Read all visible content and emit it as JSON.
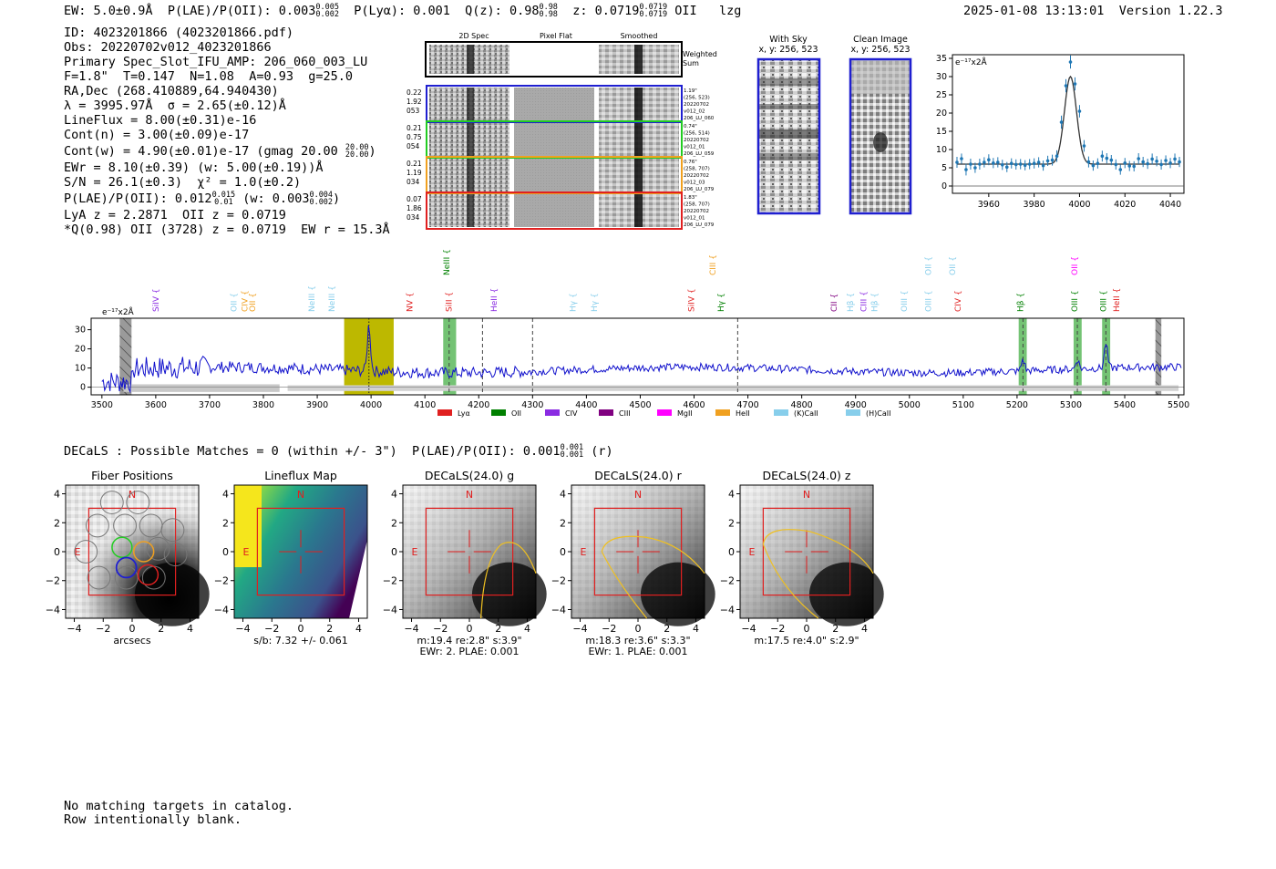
{
  "header": {
    "ew_label": "EW: 5.0±0.9Å",
    "plae_label": "P(LAE)/P(OII): 0.003",
    "plae_hi": "0.005",
    "plae_lo": "0.002",
    "plya_label": "P(Lyα): 0.001",
    "q_label": "Q(z): 0.98",
    "q_hi": "0.98",
    "q_lo": "0.98",
    "z_label": "z: 0.0719",
    "z_hi": "0.0719",
    "z_lo": "0.0719",
    "z_line": "OII",
    "tag": "lzg",
    "timestamp": "2025-01-08 13:13:01",
    "version": "Version 1.22.3"
  },
  "info": {
    "id": "ID: 4023201866 (4023201866.pdf)",
    "obs": "Obs: 20220702v012_4023201866",
    "slot": "Primary Spec_Slot_IFU_AMP: 206_060_003_LU",
    "fta": "F=1.8\"  T=0.147  N=1.08  A=0.93  g=25.0",
    "radec": "RA,Dec (268.410889,64.940430)",
    "lambda": "λ = 3995.97Å  σ = 2.65(±0.12)Å",
    "lineflux": "LineFlux = 8.00(±0.31)e-16",
    "contn": "Cont(n) = 3.00(±0.09)e-17",
    "contw": "Cont(w) = 4.90(±0.01)e-17 (gmag 20.00",
    "contw_hi": "20.00",
    "contw_lo": "20.00",
    "contw_end": ")",
    "ewr": "EWr = 8.10(±0.39) (w: 5.00(±0.19))Å",
    "sn": "S/N = 26.1(±0.3)  χ² = 1.0(±0.2)",
    "plae2": "P(LAE)/P(OII): 0.012",
    "plae2_hi": "0.015",
    "plae2_lo": "0.01",
    "plae2_w": "(w: 0.003",
    "plae2_w_hi": "0.004",
    "plae2_w_lo": "0.002",
    "plae2_end": ")",
    "lya": "LyA z = 2.2871  OII z = 0.0719",
    "qline": "*Q(0.98) OII (3728) z = 0.0719  EW r = 15.3Å"
  },
  "cutouts": {
    "col_labels": [
      "2D Spec",
      "Pixel Flat",
      "Smoothed"
    ],
    "weighted": [
      "Weighted",
      "Sum"
    ],
    "rows": [
      {
        "left": [
          "0.22",
          "1.92",
          "053"
        ],
        "right": [
          "1.19\"",
          "(256, 523)",
          "20220702",
          "v012_02",
          "206_LU_060"
        ],
        "color": "#1f1fd0"
      },
      {
        "left": [
          "0.21",
          "0.75",
          "054"
        ],
        "right": [
          "0.74\"",
          "(256, 514)",
          "20220702",
          "v012_01",
          "206_LU_059"
        ],
        "color": "#22cc22"
      },
      {
        "left": [
          "0.21",
          "1.19",
          "034"
        ],
        "right": [
          "0.76\"",
          "(258, 707)",
          "20220702",
          "v012_03",
          "206_LU_079"
        ],
        "color": "#f0a020"
      },
      {
        "left": [
          "0.07",
          "1.86",
          "034"
        ],
        "right": [
          "1.83\"",
          "(258, 707)",
          "20220702",
          "v012_01",
          "206_LU_079"
        ],
        "color": "#e02020"
      }
    ],
    "with_sky": [
      "With Sky",
      "x, y: 256, 523"
    ],
    "clean_image": [
      "Clean Image",
      "x, y: 256, 523"
    ]
  },
  "chart_data": [
    {
      "type": "scatter",
      "name": "line-fit",
      "ylabel": "e⁻¹⁷x2Å",
      "xlim": [
        3944,
        4046
      ],
      "ylim": [
        -2,
        36
      ],
      "x_ticks": [
        3960,
        3980,
        4000,
        4020,
        4040
      ],
      "y_ticks": [
        0,
        5,
        10,
        15,
        20,
        25,
        30,
        35
      ],
      "points": [
        [
          3946,
          6.5
        ],
        [
          3948,
          7.5
        ],
        [
          3950,
          4.5
        ],
        [
          3952,
          6
        ],
        [
          3954,
          5
        ],
        [
          3956,
          6
        ],
        [
          3958,
          6.5
        ],
        [
          3960,
          7.2
        ],
        [
          3962,
          6.3
        ],
        [
          3964,
          6.5
        ],
        [
          3966,
          5.8
        ],
        [
          3968,
          5.2
        ],
        [
          3970,
          6.2
        ],
        [
          3972,
          5.9
        ],
        [
          3974,
          6
        ],
        [
          3976,
          5.7
        ],
        [
          3978,
          6
        ],
        [
          3980,
          6.2
        ],
        [
          3982,
          6.5
        ],
        [
          3984,
          5.6
        ],
        [
          3986,
          6.9
        ],
        [
          3988,
          7.1
        ],
        [
          3990,
          8.2
        ],
        [
          3992,
          17.5
        ],
        [
          3994,
          27.5
        ],
        [
          3996,
          34
        ],
        [
          3998,
          28
        ],
        [
          4000,
          20.5
        ],
        [
          4002,
          11
        ],
        [
          4004,
          6.6
        ],
        [
          4006,
          5.6
        ],
        [
          4008,
          6.2
        ],
        [
          4010,
          8.2
        ],
        [
          4012,
          7.6
        ],
        [
          4014,
          7.1
        ],
        [
          4016,
          5.9
        ],
        [
          4018,
          4.5
        ],
        [
          4020,
          6.3
        ],
        [
          4022,
          5.5
        ],
        [
          4024,
          5.4
        ],
        [
          4026,
          7.5
        ],
        [
          4028,
          6.6
        ],
        [
          4030,
          6.1
        ],
        [
          4032,
          7.4
        ],
        [
          4034,
          6.8
        ],
        [
          4036,
          5.9
        ],
        [
          4038,
          7
        ],
        [
          4040,
          6.3
        ],
        [
          4042,
          7.4
        ],
        [
          4044,
          6.6
        ]
      ],
      "errors": [
        1.5,
        1.4,
        1.6,
        1.5,
        1.4,
        1.5,
        1.4,
        1.5,
        1.4,
        1.4,
        1.4,
        1.4,
        1.4,
        1.4,
        1.4,
        1.4,
        1.4,
        1.4,
        1.4,
        1.4,
        1.4,
        1.5,
        1.6,
        1.8,
        1.8,
        1.8,
        1.8,
        1.7,
        1.6,
        1.5,
        1.4,
        1.4,
        1.5,
        1.4,
        1.4,
        1.4,
        1.4,
        1.4,
        1.4,
        1.4,
        1.5,
        1.4,
        1.4,
        1.5,
        1.4,
        1.4,
        1.4,
        1.4,
        1.5,
        1.4
      ],
      "fit": {
        "continuum": 6,
        "amplitude": 24,
        "center": 3996,
        "sigma": 2.65
      }
    },
    {
      "type": "line",
      "name": "full-spectrum",
      "ylabel": "e⁻¹⁷x2Å",
      "xlim": [
        3480,
        5510
      ],
      "ylim": [
        -4,
        36
      ],
      "x_ticks": [
        3500,
        3600,
        3700,
        3800,
        3900,
        4000,
        4100,
        4200,
        4300,
        4400,
        4500,
        4600,
        4700,
        4800,
        4900,
        5000,
        5100,
        5200,
        5300,
        5400,
        5500
      ],
      "y_ticks": [
        0,
        10,
        20,
        30
      ],
      "emission_peaks": [
        {
          "x": 3996,
          "y": 33
        },
        {
          "x": 5211,
          "y": 15
        },
        {
          "x": 5312,
          "y": 14
        },
        {
          "x": 5365,
          "y": 22
        }
      ],
      "baseline": 9,
      "highlight_yellow": [
        3950,
        4042
      ],
      "highlight_green": [
        [
          4134,
          4158
        ],
        [
          5203,
          5218
        ],
        [
          5305,
          5320
        ],
        [
          5358,
          5373
        ]
      ],
      "hatched_gray": [
        [
          3533,
          3555
        ],
        [
          5457,
          5468
        ]
      ],
      "dashed_lines": [
        4145,
        4207,
        4300,
        4681,
        5211,
        5312,
        5365
      ],
      "dotted_line": 3996,
      "line_labels": [
        {
          "x": 3605,
          "label": "SiIV",
          "color": "#8a2be2",
          "row": 2
        },
        {
          "x": 3750,
          "label": "OII",
          "color": "#87ceeb",
          "row": 2
        },
        {
          "x": 3770,
          "label": "CIV",
          "color": "#f0a020",
          "row": 2
        },
        {
          "x": 3785,
          "label": "OII",
          "color": "#f0a020",
          "row": 2
        },
        {
          "x": 3895,
          "label": "NeIII",
          "color": "#87ceeb",
          "row": 2
        },
        {
          "x": 3932,
          "label": "NeIII",
          "color": "#87ceeb",
          "row": 2
        },
        {
          "x": 4077,
          "label": "NV",
          "color": "#e02020",
          "row": 2
        },
        {
          "x": 4145,
          "label": "NeIII",
          "color": "#008000",
          "row": 0
        },
        {
          "x": 4150,
          "label": "SiII",
          "color": "#e02020",
          "row": 2
        },
        {
          "x": 4233,
          "label": "HeII",
          "color": "#8a2be2",
          "row": 2
        },
        {
          "x": 4380,
          "label": "Hγ",
          "color": "#87ceeb",
          "row": 2
        },
        {
          "x": 4420,
          "label": "Hγ",
          "color": "#87ceeb",
          "row": 2
        },
        {
          "x": 4600,
          "label": "SiIV",
          "color": "#e02020",
          "row": 2
        },
        {
          "x": 4640,
          "label": "CIII",
          "color": "#f0a020",
          "row": 0
        },
        {
          "x": 4655,
          "label": "Hγ",
          "color": "#008000",
          "row": 2
        },
        {
          "x": 4865,
          "label": "CII",
          "color": "#800080",
          "row": 2
        },
        {
          "x": 4895,
          "label": "Hβ",
          "color": "#87ceeb",
          "row": 2
        },
        {
          "x": 4920,
          "label": "CIII",
          "color": "#8a2be2",
          "row": 2
        },
        {
          "x": 4940,
          "label": "Hβ",
          "color": "#87ceeb",
          "row": 2
        },
        {
          "x": 4995,
          "label": "OIII",
          "color": "#87ceeb",
          "row": 2
        },
        {
          "x": 5040,
          "label": "OII",
          "color": "#87ceeb",
          "row": 0
        },
        {
          "x": 5040,
          "label": "OIII",
          "color": "#87ceeb",
          "row": 2
        },
        {
          "x": 5085,
          "label": "OII",
          "color": "#87ceeb",
          "row": 0
        },
        {
          "x": 5095,
          "label": "CIV",
          "color": "#e02020",
          "row": 2
        },
        {
          "x": 5211,
          "label": "Hβ",
          "color": "#008000",
          "row": 2
        },
        {
          "x": 5312,
          "label": "OII",
          "color": "#ff00ff",
          "row": 0
        },
        {
          "x": 5312,
          "label": "OIII",
          "color": "#008000",
          "row": 2
        },
        {
          "x": 5365,
          "label": "OIII",
          "color": "#008000",
          "row": 2
        },
        {
          "x": 5390,
          "label": "HeII",
          "color": "#e02020",
          "row": 2
        }
      ],
      "legend": [
        {
          "label": "Lyα",
          "color": "#e02020"
        },
        {
          "label": "OII",
          "color": "#008000"
        },
        {
          "label": "CIV",
          "color": "#8a2be2"
        },
        {
          "label": "CIII",
          "color": "#800080"
        },
        {
          "label": "MgII",
          "color": "#ff00ff"
        },
        {
          "label": "HeII",
          "color": "#f0a020"
        },
        {
          "label": "(K)CaII",
          "color": "#87ceeb"
        },
        {
          "label": "(H)CaII",
          "color": "#87ceeb"
        }
      ]
    }
  ],
  "decals": {
    "heading": "DECaLS : Possible Matches = 0 (within +/- 3\")  P(LAE)/P(OII): 0.001",
    "heading_hi": "0.001",
    "heading_lo": "0.001",
    "heading_end": "(r)",
    "axis_ticks": [
      "−4",
      "−2",
      "0",
      "2",
      "4"
    ],
    "panels": [
      {
        "title": "Fiber Positions",
        "caption": [
          "arcsecs"
        ]
      },
      {
        "title": "Lineflux Map",
        "caption": [
          "s/b: 7.32 +/- 0.061"
        ]
      },
      {
        "title": "DECaLS(24.0) g",
        "caption": [
          "m:19.4  re:2.8\"  s:3.9\"",
          "EWr: 2. PLAE: 0.001"
        ]
      },
      {
        "title": "DECaLS(24.0) r",
        "caption": [
          "m:18.3  re:3.6\"  s:3.3\"",
          "EWr: 1. PLAE: 0.001"
        ]
      },
      {
        "title": "DECaLS(24.0) z",
        "caption": [
          "m:17.5  re:4.0\"  s:2.9\""
        ]
      }
    ],
    "compass_n": "N",
    "compass_e": "E"
  },
  "footer": {
    "line1": "No matching targets in catalog.",
    "line2": "Row intentionally blank."
  }
}
